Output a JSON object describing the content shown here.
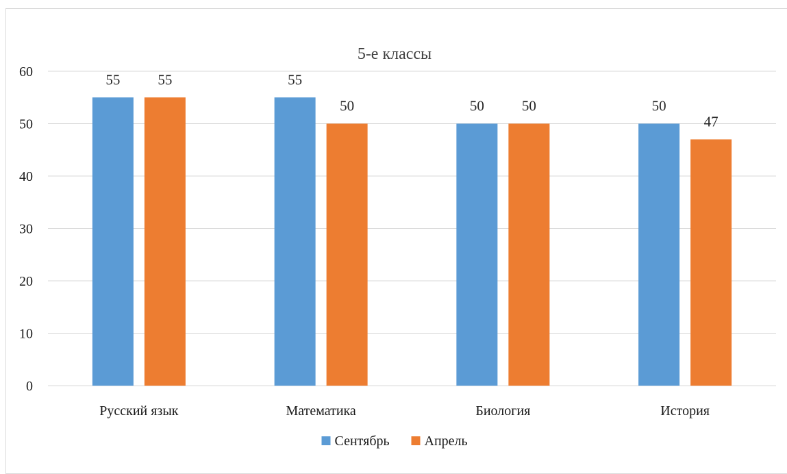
{
  "chart_data": {
    "type": "bar",
    "title": "5-е классы",
    "categories": [
      "Русский язык",
      "Математика",
      "Биология",
      "История"
    ],
    "series": [
      {
        "name": "Сентябрь",
        "values": [
          55,
          55,
          50,
          50
        ],
        "color": "#5b9bd5"
      },
      {
        "name": "Апрель",
        "values": [
          55,
          50,
          50,
          47
        ],
        "color": "#ed7d31"
      }
    ],
    "data_labels": true,
    "ylim": [
      0,
      60
    ],
    "yticks": [
      0,
      10,
      20,
      30,
      40,
      50,
      60
    ],
    "grid": true,
    "legend_position": "bottom",
    "xlabel": "",
    "ylabel": ""
  }
}
